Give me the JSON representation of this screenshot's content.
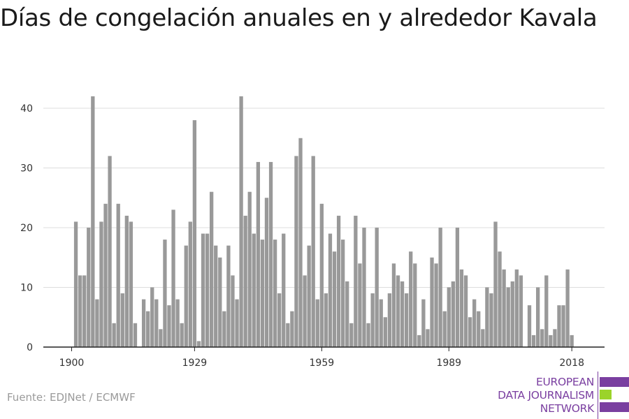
{
  "chart_data": {
    "type": "bar",
    "title": "Días de congelación anuales en y alrededor Kavala",
    "xlabel": "",
    "ylabel": "",
    "ylim": [
      0,
      45
    ],
    "yticks": [
      0,
      10,
      20,
      30,
      40
    ],
    "xticks": [
      1900,
      1929,
      1959,
      1989,
      2018
    ],
    "grid": true,
    "bar_color": "#999999",
    "x": [
      1901,
      1902,
      1903,
      1904,
      1905,
      1906,
      1907,
      1908,
      1909,
      1910,
      1911,
      1912,
      1913,
      1914,
      1915,
      1916,
      1917,
      1918,
      1919,
      1920,
      1921,
      1922,
      1923,
      1924,
      1925,
      1926,
      1927,
      1928,
      1929,
      1930,
      1931,
      1932,
      1933,
      1934,
      1935,
      1936,
      1937,
      1938,
      1939,
      1940,
      1941,
      1942,
      1943,
      1944,
      1945,
      1946,
      1947,
      1948,
      1949,
      1950,
      1951,
      1952,
      1953,
      1954,
      1955,
      1956,
      1957,
      1958,
      1959,
      1960,
      1961,
      1962,
      1963,
      1964,
      1965,
      1966,
      1967,
      1968,
      1969,
      1970,
      1971,
      1972,
      1973,
      1974,
      1975,
      1976,
      1977,
      1978,
      1979,
      1980,
      1981,
      1982,
      1983,
      1984,
      1985,
      1986,
      1987,
      1988,
      1989,
      1990,
      1991,
      1992,
      1993,
      1994,
      1995,
      1996,
      1997,
      1998,
      1999,
      2000,
      2001,
      2002,
      2003,
      2004,
      2005,
      2006,
      2007,
      2008,
      2009,
      2010,
      2011,
      2012,
      2013,
      2014,
      2015,
      2016,
      2017,
      2018,
      2019
    ],
    "values": [
      21,
      12,
      12,
      20,
      42,
      8,
      21,
      24,
      32,
      4,
      24,
      9,
      22,
      21,
      4,
      0,
      8,
      6,
      10,
      8,
      3,
      18,
      7,
      23,
      8,
      4,
      17,
      21,
      38,
      1,
      19,
      19,
      26,
      17,
      15,
      6,
      17,
      12,
      8,
      42,
      22,
      26,
      19,
      31,
      18,
      25,
      31,
      18,
      9,
      19,
      4,
      6,
      32,
      35,
      12,
      17,
      32,
      8,
      24,
      9,
      19,
      16,
      22,
      18,
      11,
      4,
      22,
      14,
      20,
      4,
      9,
      20,
      8,
      5,
      9,
      14,
      12,
      11,
      9,
      16,
      14,
      2,
      8,
      3,
      15,
      14,
      20,
      6,
      10,
      11,
      20,
      13,
      12,
      5,
      8,
      6,
      3,
      10,
      9,
      21,
      16,
      13,
      10,
      11,
      13,
      12,
      0,
      7,
      2,
      10,
      3,
      12,
      2,
      3,
      7,
      7,
      13,
      2,
      0
    ]
  },
  "source_text": "Fuente: EDJNet / ECMWF",
  "logo": {
    "lines": [
      "EUROPEAN",
      "DATA JOURNALISM",
      "NETWORK"
    ],
    "colors": {
      "purple": "#7a3fa0",
      "green": "#9bd32a"
    }
  }
}
